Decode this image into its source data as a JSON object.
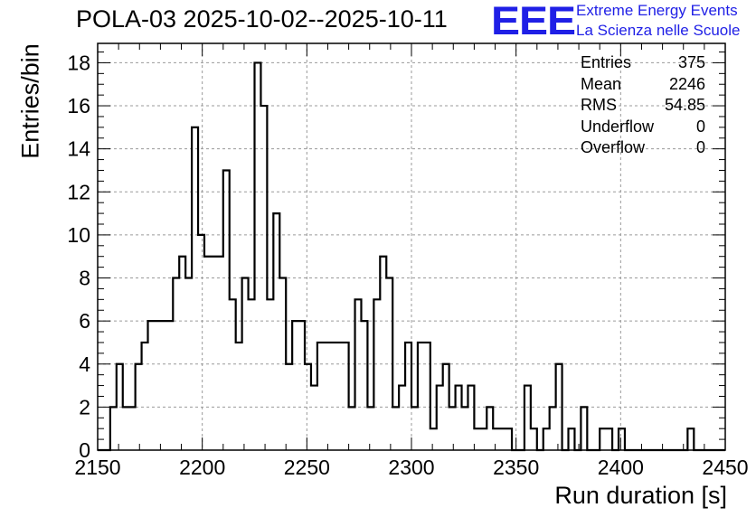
{
  "title": "POLA-03 2025-10-02--2025-10-11",
  "logo": {
    "mark": "EEE",
    "line1": "Extreme Energy Events",
    "line2": "La Scienza nelle Scuole",
    "color": "#1f1fe6"
  },
  "stats": [
    {
      "label": "Entries",
      "value": "375"
    },
    {
      "label": "Mean",
      "value": "2246"
    },
    {
      "label": "RMS",
      "value": "54.85"
    },
    {
      "label": "Underflow",
      "value": "0"
    },
    {
      "label": "Overflow",
      "value": "0"
    }
  ],
  "chart_data": {
    "type": "histogram",
    "xlabel": "Run duration [s]",
    "ylabel": "Entries/bin",
    "xlim": [
      2150,
      2450
    ],
    "ylim": [
      0,
      18.9
    ],
    "grid": true,
    "xticks": [
      2150,
      2200,
      2250,
      2300,
      2350,
      2400,
      2450
    ],
    "yticks": [
      0,
      2,
      4,
      6,
      8,
      10,
      12,
      14,
      16,
      18
    ],
    "bin_width": 3,
    "bins": [
      {
        "x": 2150,
        "count": 0
      },
      {
        "x": 2153,
        "count": 0
      },
      {
        "x": 2156,
        "count": 2
      },
      {
        "x": 2159,
        "count": 4
      },
      {
        "x": 2162,
        "count": 2
      },
      {
        "x": 2165,
        "count": 2
      },
      {
        "x": 2168,
        "count": 4
      },
      {
        "x": 2171,
        "count": 5
      },
      {
        "x": 2174,
        "count": 6
      },
      {
        "x": 2177,
        "count": 6
      },
      {
        "x": 2180,
        "count": 6
      },
      {
        "x": 2183,
        "count": 6
      },
      {
        "x": 2186,
        "count": 8
      },
      {
        "x": 2189,
        "count": 9
      },
      {
        "x": 2192,
        "count": 8
      },
      {
        "x": 2195,
        "count": 15
      },
      {
        "x": 2198,
        "count": 10
      },
      {
        "x": 2201,
        "count": 9
      },
      {
        "x": 2204,
        "count": 9
      },
      {
        "x": 2207,
        "count": 9
      },
      {
        "x": 2210,
        "count": 13
      },
      {
        "x": 2213,
        "count": 7
      },
      {
        "x": 2216,
        "count": 5
      },
      {
        "x": 2219,
        "count": 8
      },
      {
        "x": 2222,
        "count": 7
      },
      {
        "x": 2225,
        "count": 18
      },
      {
        "x": 2228,
        "count": 16
      },
      {
        "x": 2231,
        "count": 7
      },
      {
        "x": 2234,
        "count": 11
      },
      {
        "x": 2237,
        "count": 8
      },
      {
        "x": 2240,
        "count": 4
      },
      {
        "x": 2243,
        "count": 6
      },
      {
        "x": 2246,
        "count": 6
      },
      {
        "x": 2249,
        "count": 4
      },
      {
        "x": 2252,
        "count": 3
      },
      {
        "x": 2255,
        "count": 5
      },
      {
        "x": 2258,
        "count": 5
      },
      {
        "x": 2261,
        "count": 5
      },
      {
        "x": 2264,
        "count": 5
      },
      {
        "x": 2267,
        "count": 5
      },
      {
        "x": 2270,
        "count": 2
      },
      {
        "x": 2273,
        "count": 7
      },
      {
        "x": 2276,
        "count": 6
      },
      {
        "x": 2279,
        "count": 2
      },
      {
        "x": 2282,
        "count": 7
      },
      {
        "x": 2285,
        "count": 9
      },
      {
        "x": 2288,
        "count": 8
      },
      {
        "x": 2291,
        "count": 2
      },
      {
        "x": 2294,
        "count": 3
      },
      {
        "x": 2297,
        "count": 5
      },
      {
        "x": 2300,
        "count": 2
      },
      {
        "x": 2303,
        "count": 5
      },
      {
        "x": 2306,
        "count": 5
      },
      {
        "x": 2309,
        "count": 1
      },
      {
        "x": 2312,
        "count": 3
      },
      {
        "x": 2315,
        "count": 4
      },
      {
        "x": 2318,
        "count": 2
      },
      {
        "x": 2321,
        "count": 3
      },
      {
        "x": 2324,
        "count": 2
      },
      {
        "x": 2327,
        "count": 3
      },
      {
        "x": 2330,
        "count": 1
      },
      {
        "x": 2333,
        "count": 1
      },
      {
        "x": 2336,
        "count": 2
      },
      {
        "x": 2339,
        "count": 1
      },
      {
        "x": 2342,
        "count": 1
      },
      {
        "x": 2345,
        "count": 1
      },
      {
        "x": 2348,
        "count": 0
      },
      {
        "x": 2351,
        "count": 0
      },
      {
        "x": 2354,
        "count": 3
      },
      {
        "x": 2357,
        "count": 1
      },
      {
        "x": 2360,
        "count": 0
      },
      {
        "x": 2363,
        "count": 1
      },
      {
        "x": 2366,
        "count": 2
      },
      {
        "x": 2369,
        "count": 4
      },
      {
        "x": 2372,
        "count": 0
      },
      {
        "x": 2375,
        "count": 1
      },
      {
        "x": 2378,
        "count": 0
      },
      {
        "x": 2381,
        "count": 2
      },
      {
        "x": 2384,
        "count": 0
      },
      {
        "x": 2387,
        "count": 0
      },
      {
        "x": 2390,
        "count": 1
      },
      {
        "x": 2393,
        "count": 1
      },
      {
        "x": 2396,
        "count": 0
      },
      {
        "x": 2399,
        "count": 1
      },
      {
        "x": 2402,
        "count": 0
      },
      {
        "x": 2405,
        "count": 0
      },
      {
        "x": 2408,
        "count": 0
      },
      {
        "x": 2411,
        "count": 0
      },
      {
        "x": 2414,
        "count": 0
      },
      {
        "x": 2417,
        "count": 0
      },
      {
        "x": 2420,
        "count": 0
      },
      {
        "x": 2423,
        "count": 0
      },
      {
        "x": 2426,
        "count": 0
      },
      {
        "x": 2429,
        "count": 0
      },
      {
        "x": 2432,
        "count": 1
      },
      {
        "x": 2435,
        "count": 0
      },
      {
        "x": 2438,
        "count": 0
      },
      {
        "x": 2441,
        "count": 0
      },
      {
        "x": 2444,
        "count": 0
      },
      {
        "x": 2447,
        "count": 0
      }
    ]
  }
}
